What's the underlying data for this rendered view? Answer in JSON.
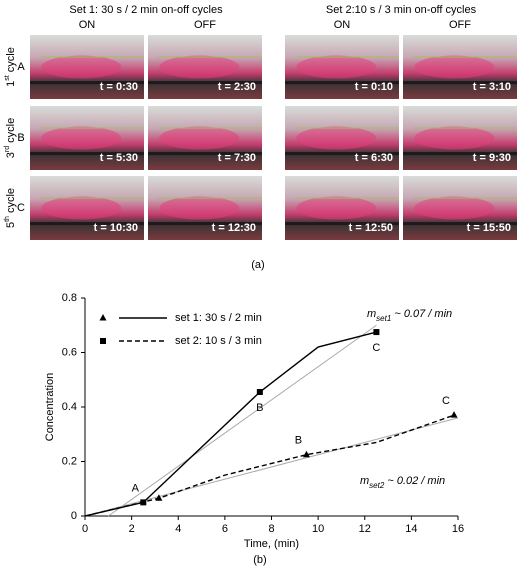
{
  "panel_a": {
    "label": "(a)",
    "rows": [
      {
        "num": "1",
        "sup": "st",
        "word": " cycle",
        "letter": "A"
      },
      {
        "num": "3",
        "sup": "rd",
        "word": " cycle",
        "letter": "B"
      },
      {
        "num": "5",
        "sup": "th",
        "word": " cycle",
        "letter": "C"
      }
    ],
    "sets": [
      {
        "title": "Set 1: 30 s / 2 min on-off cycles",
        "columns": [
          "ON",
          "OFF"
        ],
        "times": [
          [
            "t = 0:30",
            "t = 2:30"
          ],
          [
            "t = 5:30",
            "t = 7:30"
          ],
          [
            "t = 10:30",
            "t = 12:30"
          ]
        ]
      },
      {
        "title": "Set 2:10 s / 3 min on-off cycles",
        "columns": [
          "ON",
          "OFF"
        ],
        "times": [
          [
            "t = 0:10",
            "t = 3:10"
          ],
          [
            "t = 6:30",
            "t = 9:30"
          ],
          [
            "t = 12:50",
            "t = 15:50"
          ]
        ]
      }
    ]
  },
  "chart_data": {
    "type": "line",
    "label": "(b)",
    "x_label": "Time, (min)",
    "y_label": "Concentration",
    "xlim": [
      0,
      16
    ],
    "xticks": [
      0,
      2,
      4,
      6,
      8,
      10,
      12,
      14,
      16
    ],
    "ylim": [
      0,
      0.8
    ],
    "yticks": [
      0,
      0.2,
      0.4,
      0.6,
      0.8
    ],
    "grid": false,
    "legend": "top-left",
    "series": [
      {
        "name": "set 1: 30 s / 2 min",
        "color": "#000000",
        "dash": "solid",
        "legend_marker": "triangle",
        "x": [
          0,
          2.5,
          7.5,
          10,
          12.5
        ],
        "values": [
          0,
          0.05,
          0.455,
          0.62,
          0.675
        ]
      },
      {
        "name": "set 2: 10 s / 3 min",
        "color": "#000000",
        "dash": "dashed",
        "legend_marker": "square",
        "x": [
          0,
          3.17,
          6,
          9.5,
          12.5,
          15.83
        ],
        "values": [
          0,
          0.065,
          0.15,
          0.225,
          0.27,
          0.37
        ]
      }
    ],
    "markers": [
      {
        "marker": "square",
        "x": [
          2.5,
          7.5,
          12.5
        ],
        "values": [
          0.05,
          0.455,
          0.675
        ],
        "labels": [
          "A",
          "B",
          "C"
        ]
      },
      {
        "marker": "triangle",
        "x": [
          3.17,
          9.5,
          15.83
        ],
        "values": [
          0.065,
          0.225,
          0.37
        ],
        "labels": [
          null,
          "B",
          "C"
        ]
      }
    ],
    "trendlines": [
      {
        "color": "#aaaaaa",
        "x": [
          1,
          12.5
        ],
        "values": [
          0,
          0.7
        ]
      },
      {
        "color": "#aaaaaa",
        "x": [
          0,
          16
        ],
        "values": [
          0,
          0.36
        ]
      }
    ],
    "annotations": [
      {
        "m": "m",
        "sub": "set1",
        "rest": " ~ 0.07 / min"
      },
      {
        "m": "m",
        "sub": "set2",
        "rest": " ~ 0.02 / min"
      }
    ]
  }
}
